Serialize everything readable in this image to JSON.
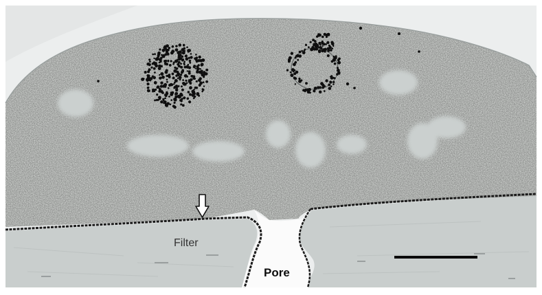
{
  "figure": {
    "labels": {
      "filter": "Filter",
      "pore": "Pore"
    },
    "annotations": {
      "arrow": "white-down-arrow",
      "scale_bar": "scale-bar"
    },
    "colors": {
      "cell_cytoplasm": "#dcdfdc",
      "filter_substrate": "#c9cecd",
      "pore_lumen": "#fbfbfb",
      "membrane_stain": "#1b1b1b",
      "gold_particles": "#0f0f0f",
      "background": "#ffffff"
    }
  }
}
